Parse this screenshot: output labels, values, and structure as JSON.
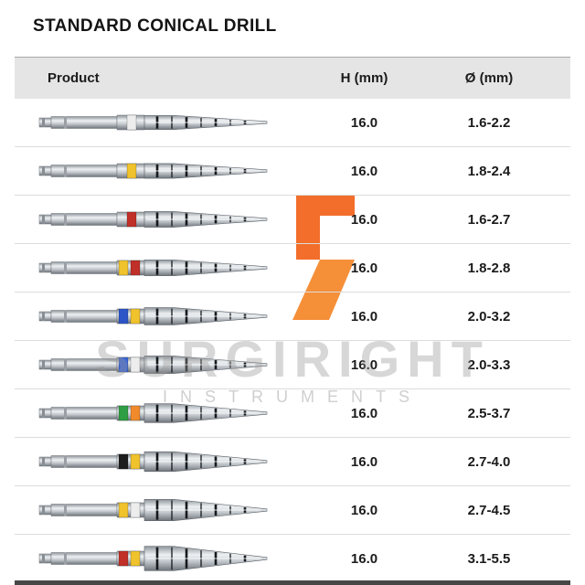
{
  "page": {
    "title": "STANDARD CONICAL DRILL"
  },
  "table": {
    "headers": [
      "Product",
      "H (mm)",
      "Ø (mm)"
    ],
    "rows": [
      {
        "h": "16.0",
        "diameter": "1.6-2.2",
        "band_colors": [
          "#ededed"
        ]
      },
      {
        "h": "16.0",
        "diameter": "1.8-2.4",
        "band_colors": [
          "#f0c22c"
        ]
      },
      {
        "h": "16.0",
        "diameter": "1.6-2.7",
        "band_colors": [
          "#c03028"
        ]
      },
      {
        "h": "16.0",
        "diameter": "1.8-2.8",
        "band_colors": [
          "#f0c22c",
          "#c03028"
        ]
      },
      {
        "h": "16.0",
        "diameter": "2.0-3.2",
        "band_colors": [
          "#2c55c8",
          "#f0c22c"
        ]
      },
      {
        "h": "16.0",
        "diameter": "2.0-3.3",
        "band_colors": [
          "#3a66d8",
          "#ededed"
        ]
      },
      {
        "h": "16.0",
        "diameter": "2.5-3.7",
        "band_colors": [
          "#2f9e44",
          "#f08a2a"
        ]
      },
      {
        "h": "16.0",
        "diameter": "2.7-4.0",
        "band_colors": [
          "#1d1d1d",
          "#f0c22c"
        ]
      },
      {
        "h": "16.0",
        "diameter": "2.7-4.5",
        "band_colors": [
          "#f0c22c",
          "#ededed"
        ]
      },
      {
        "h": "16.0",
        "diameter": "3.1-5.5",
        "band_colors": [
          "#c03028",
          "#f0c22c"
        ]
      }
    ]
  },
  "watermark": {
    "line1": "SURGIRIGHT",
    "line2": "INSTRUMENTS",
    "logo_color": "#f47b20"
  }
}
